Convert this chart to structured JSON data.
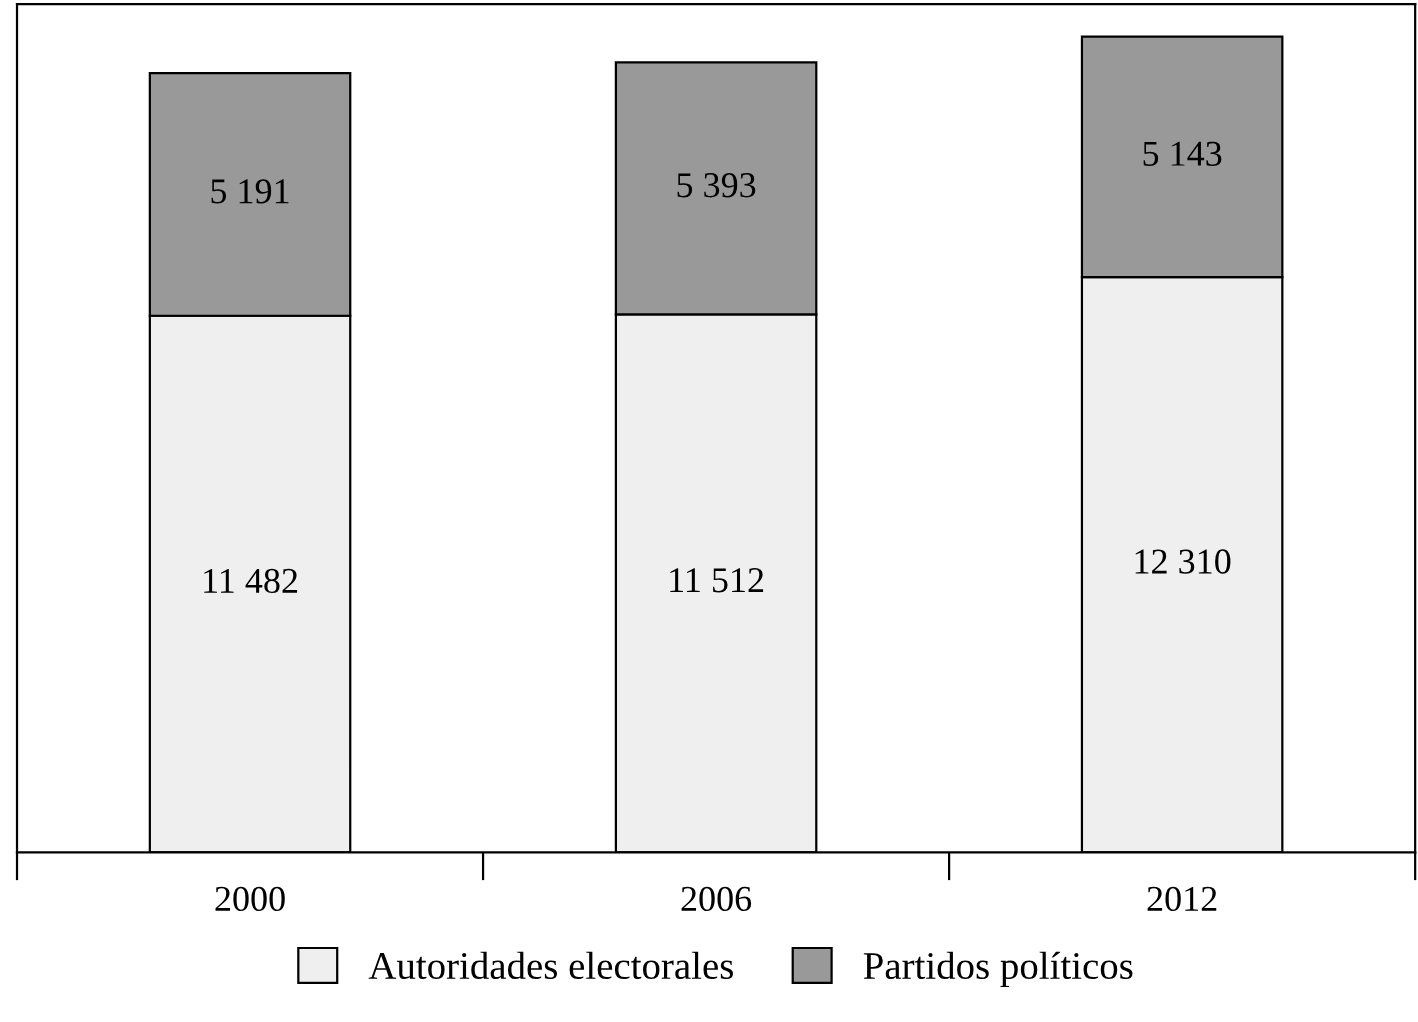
{
  "chart_data": {
    "type": "bar",
    "stacked": true,
    "categories": [
      "2000",
      "2006",
      "2012"
    ],
    "series": [
      {
        "name": "Autoridades electorales",
        "color": "#efefef",
        "values": [
          11482,
          11512,
          12310
        ],
        "value_labels": [
          "11 482",
          "11 512",
          "12 310"
        ]
      },
      {
        "name": "Partidos políticos",
        "color": "#999999",
        "values": [
          5191,
          5393,
          5143
        ],
        "value_labels": [
          "5 191",
          "5 393",
          "5 143"
        ]
      }
    ],
    "legend": "bottom",
    "grid": false
  }
}
